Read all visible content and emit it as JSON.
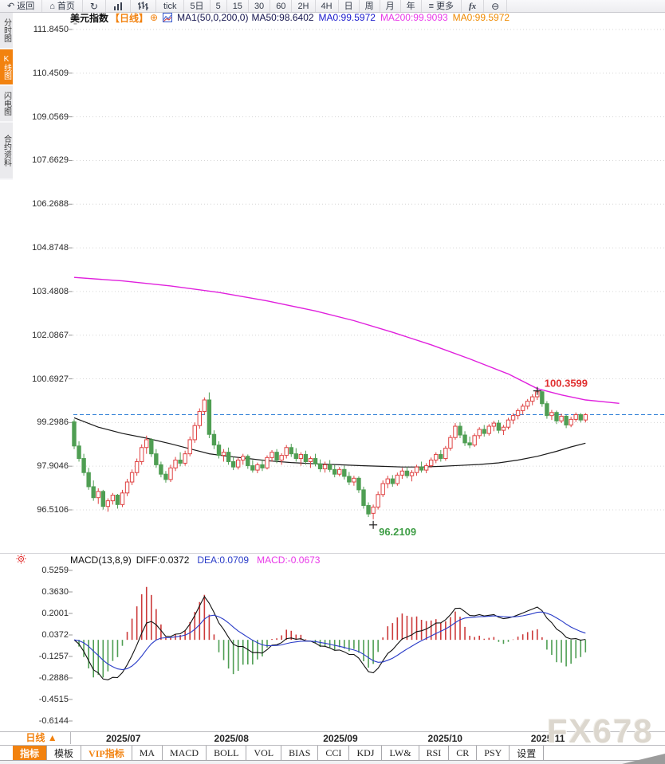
{
  "toolbar": {
    "items": [
      {
        "name": "back",
        "icon": "back",
        "label": "返回"
      },
      {
        "name": "home",
        "icon": "home",
        "label": "首页"
      },
      {
        "name": "refresh",
        "icon": "refresh",
        "label": ""
      },
      {
        "name": "chart-type-area",
        "icon": "area-chart",
        "label": ""
      },
      {
        "name": "chart-type-ohlc",
        "icon": "ohlc",
        "label": ""
      },
      {
        "name": "period-tick",
        "icon": "",
        "label": "tick"
      },
      {
        "name": "period-5day",
        "icon": "",
        "label": "5日"
      },
      {
        "name": "period-5",
        "icon": "",
        "label": "5"
      },
      {
        "name": "period-15",
        "icon": "",
        "label": "15"
      },
      {
        "name": "period-30",
        "icon": "",
        "label": "30"
      },
      {
        "name": "period-60",
        "icon": "",
        "label": "60"
      },
      {
        "name": "period-2h",
        "icon": "",
        "label": "2H"
      },
      {
        "name": "period-4h",
        "icon": "",
        "label": "4H"
      },
      {
        "name": "period-day",
        "icon": "",
        "label": "日"
      },
      {
        "name": "period-week",
        "icon": "",
        "label": "周"
      },
      {
        "name": "period-month",
        "icon": "",
        "label": "月"
      },
      {
        "name": "period-year",
        "icon": "",
        "label": "年"
      },
      {
        "name": "more",
        "icon": "more",
        "label": "更多"
      },
      {
        "name": "fx",
        "icon": "fx",
        "label": ""
      },
      {
        "name": "zoom-out",
        "icon": "zoom-out",
        "label": ""
      }
    ]
  },
  "sidebar": {
    "tabs": [
      {
        "name": "time-chart",
        "label": "分时图",
        "active": false
      },
      {
        "name": "kline-chart",
        "label": "K线图",
        "active": true
      },
      {
        "name": "lightning-chart",
        "label": "闪电图",
        "active": false
      },
      {
        "name": "contract-info",
        "label": "合约资料",
        "active": false
      }
    ]
  },
  "chart_header": {
    "symbol": "美元指数",
    "timeframe": "【日线】",
    "plus": "⊕",
    "ma_settings": "MA1(50,0,200,0)",
    "ma50": "MA50:98.6402",
    "ma0_blue": "MA0:99.5972",
    "ma200": "MA200:99.9093",
    "ma0_orange": "MA0:99.5972"
  },
  "macd_header": {
    "title": "MACD(13,8,9)",
    "diff": "DIFF:0.0372",
    "dea": "DEA:0.0709",
    "macd": "MACD:-0.0673"
  },
  "bottom": {
    "period_tab": "日线 ▲",
    "tabs": [
      {
        "name": "indicator",
        "label": "指标",
        "style": "active"
      },
      {
        "name": "template",
        "label": "模板",
        "style": ""
      },
      {
        "name": "vip-indicator",
        "label": "VIP指标",
        "style": "vip"
      },
      {
        "name": "ma",
        "label": "MA",
        "style": ""
      },
      {
        "name": "macd",
        "label": "MACD",
        "style": ""
      },
      {
        "name": "boll",
        "label": "BOLL",
        "style": ""
      },
      {
        "name": "vol",
        "label": "VOL",
        "style": ""
      },
      {
        "name": "bias",
        "label": "BIAS",
        "style": ""
      },
      {
        "name": "cci",
        "label": "CCI",
        "style": ""
      },
      {
        "name": "kdj",
        "label": "KDJ",
        "style": ""
      },
      {
        "name": "lw",
        "label": "LW&",
        "style": ""
      },
      {
        "name": "rsi",
        "label": "RSI",
        "style": ""
      },
      {
        "name": "cr",
        "label": "CR",
        "style": ""
      },
      {
        "name": "psy",
        "label": "PSY",
        "style": ""
      },
      {
        "name": "settings",
        "label": "设置",
        "style": ""
      }
    ]
  },
  "watermark": "FX678",
  "colors": {
    "accent_orange": "#f2820f",
    "up_red": "#df4242",
    "down_green": "#4f9e53",
    "ma50": "#1a1a1a",
    "ma200": "#e020dd",
    "diff_black": "#111111",
    "dea_blue": "#2a3cc8",
    "macd_magenta": "#e838e8",
    "price_line_blue": "#2f7fd6",
    "header_navy": "#14144e",
    "ma0_blue": "#1818cc",
    "ma0_orange": "#ef8a00",
    "grid": "#d6d6d6",
    "high_label_red": "#e03030",
    "low_label_green": "#3f9e46"
  },
  "chart_data": {
    "type": "candlestick",
    "title": "美元指数 日线 (US Dollar Index, daily)",
    "y_ticks": [
      111.845,
      110.4509,
      109.0569,
      107.6629,
      106.2688,
      104.8748,
      103.4808,
      102.0867,
      100.6927,
      99.2986,
      97.9046,
      96.5106
    ],
    "x_ticks": [
      "2025/07",
      "2025/08",
      "2025/09",
      "2025/10",
      "2025/11"
    ],
    "x_tick_index": [
      10.2,
      32.6,
      55.2,
      76.9,
      98.2
    ],
    "candles": [
      [
        99.32,
        99.4,
        98.45,
        98.55
      ],
      [
        98.55,
        98.7,
        98.05,
        98.15
      ],
      [
        98.15,
        98.3,
        97.6,
        97.7
      ],
      [
        97.7,
        97.85,
        97.15,
        97.25
      ],
      [
        97.25,
        97.45,
        96.8,
        96.9
      ],
      [
        96.9,
        97.2,
        96.7,
        97.1
      ],
      [
        97.1,
        97.15,
        96.52,
        96.62
      ],
      [
        96.62,
        96.88,
        96.45,
        96.8
      ],
      [
        96.8,
        97.05,
        96.68,
        96.98
      ],
      [
        96.98,
        97.02,
        96.55,
        96.68
      ],
      [
        96.68,
        97.15,
        96.6,
        97.05
      ],
      [
        97.05,
        97.5,
        96.95,
        97.4
      ],
      [
        97.4,
        97.8,
        97.3,
        97.7
      ],
      [
        97.7,
        98.15,
        97.6,
        98.05
      ],
      [
        98.05,
        98.6,
        97.95,
        98.5
      ],
      [
        98.5,
        98.88,
        98.3,
        98.75
      ],
      [
        98.75,
        98.8,
        98.2,
        98.3
      ],
      [
        98.3,
        98.45,
        97.85,
        97.95
      ],
      [
        97.95,
        98.05,
        97.55,
        97.65
      ],
      [
        97.65,
        97.75,
        97.38,
        97.48
      ],
      [
        97.48,
        97.95,
        97.4,
        97.85
      ],
      [
        97.85,
        98.2,
        97.75,
        98.1
      ],
      [
        98.1,
        98.35,
        97.9,
        98.0
      ],
      [
        98.0,
        98.4,
        97.92,
        98.3
      ],
      [
        98.3,
        98.85,
        98.22,
        98.75
      ],
      [
        98.75,
        99.3,
        98.65,
        99.2
      ],
      [
        99.2,
        99.75,
        99.1,
        99.65
      ],
      [
        99.65,
        100.1,
        99.55,
        100.02
      ],
      [
        100.02,
        100.26,
        98.8,
        98.92
      ],
      [
        98.92,
        99.05,
        98.45,
        98.58
      ],
      [
        98.58,
        98.7,
        98.15,
        98.25
      ],
      [
        98.25,
        98.45,
        98.05,
        98.35
      ],
      [
        98.35,
        98.5,
        97.95,
        98.05
      ],
      [
        98.05,
        98.2,
        97.78,
        97.88
      ],
      [
        97.88,
        98.18,
        97.8,
        98.1
      ],
      [
        98.1,
        98.3,
        97.95,
        98.22
      ],
      [
        98.22,
        98.28,
        97.82,
        97.92
      ],
      [
        97.92,
        98.1,
        97.7,
        97.78
      ],
      [
        97.78,
        98.02,
        97.68,
        97.95
      ],
      [
        97.95,
        98.12,
        97.75,
        97.85
      ],
      [
        97.85,
        98.25,
        97.8,
        98.18
      ],
      [
        98.18,
        98.42,
        98.05,
        98.35
      ],
      [
        98.35,
        98.45,
        98.0,
        98.1
      ],
      [
        98.1,
        98.32,
        97.95,
        98.25
      ],
      [
        98.25,
        98.58,
        98.15,
        98.5
      ],
      [
        98.5,
        98.62,
        98.2,
        98.3
      ],
      [
        98.3,
        98.48,
        98.05,
        98.15
      ],
      [
        98.15,
        98.35,
        97.92,
        98.28
      ],
      [
        98.28,
        98.4,
        97.95,
        98.05
      ],
      [
        98.05,
        98.22,
        97.85,
        98.15
      ],
      [
        98.15,
        98.3,
        97.9,
        97.98
      ],
      [
        97.98,
        98.12,
        97.72,
        97.82
      ],
      [
        97.82,
        98.05,
        97.7,
        97.95
      ],
      [
        97.95,
        98.1,
        97.72,
        97.8
      ],
      [
        97.8,
        97.95,
        97.55,
        97.65
      ],
      [
        97.65,
        97.88,
        97.58,
        97.8
      ],
      [
        97.8,
        97.92,
        97.48,
        97.58
      ],
      [
        97.58,
        97.72,
        97.3,
        97.4
      ],
      [
        97.4,
        97.6,
        97.28,
        97.52
      ],
      [
        97.52,
        97.58,
        97.05,
        97.15
      ],
      [
        97.15,
        97.25,
        96.55,
        96.65
      ],
      [
        96.65,
        96.75,
        96.28,
        96.38
      ],
      [
        96.4,
        96.68,
        96.21,
        96.6
      ],
      [
        96.6,
        97.1,
        96.52,
        97.0
      ],
      [
        97.0,
        97.45,
        96.92,
        97.35
      ],
      [
        97.35,
        97.6,
        97.2,
        97.5
      ],
      [
        97.5,
        97.62,
        97.25,
        97.35
      ],
      [
        97.35,
        97.7,
        97.28,
        97.62
      ],
      [
        97.62,
        97.85,
        97.5,
        97.75
      ],
      [
        97.75,
        97.88,
        97.52,
        97.6
      ],
      [
        97.6,
        97.78,
        97.42,
        97.7
      ],
      [
        97.7,
        97.95,
        97.6,
        97.88
      ],
      [
        97.88,
        98.05,
        97.7,
        97.78
      ],
      [
        97.78,
        98.0,
        97.68,
        97.92
      ],
      [
        97.92,
        98.18,
        97.85,
        98.1
      ],
      [
        98.1,
        98.35,
        98.0,
        98.28
      ],
      [
        98.28,
        98.42,
        98.05,
        98.15
      ],
      [
        98.15,
        98.55,
        98.08,
        98.48
      ],
      [
        98.48,
        98.9,
        98.4,
        98.82
      ],
      [
        98.82,
        99.28,
        98.75,
        99.18
      ],
      [
        99.18,
        99.3,
        98.8,
        98.9
      ],
      [
        98.9,
        99.02,
        98.55,
        98.65
      ],
      [
        98.65,
        98.85,
        98.48,
        98.58
      ],
      [
        98.58,
        98.95,
        98.52,
        98.88
      ],
      [
        98.88,
        99.15,
        98.78,
        99.08
      ],
      [
        99.08,
        99.22,
        98.85,
        98.95
      ],
      [
        98.95,
        99.25,
        98.88,
        99.18
      ],
      [
        99.18,
        99.35,
        99.02,
        99.28
      ],
      [
        99.28,
        99.38,
        98.95,
        99.05
      ],
      [
        99.05,
        99.22,
        98.9,
        99.15
      ],
      [
        99.15,
        99.45,
        99.08,
        99.38
      ],
      [
        99.38,
        99.6,
        99.25,
        99.52
      ],
      [
        99.52,
        99.75,
        99.4,
        99.68
      ],
      [
        99.68,
        99.9,
        99.55,
        99.82
      ],
      [
        99.82,
        100.05,
        99.72,
        99.98
      ],
      [
        99.98,
        100.2,
        99.85,
        100.12
      ],
      [
        100.12,
        100.36,
        100.02,
        100.28
      ],
      [
        100.28,
        100.32,
        99.8,
        99.9
      ],
      [
        99.9,
        99.98,
        99.42,
        99.52
      ],
      [
        99.52,
        99.7,
        99.38,
        99.62
      ],
      [
        99.62,
        99.68,
        99.25,
        99.35
      ],
      [
        99.35,
        99.58,
        99.28,
        99.5
      ],
      [
        99.5,
        99.55,
        99.12,
        99.22
      ],
      [
        99.22,
        99.48,
        99.15,
        99.4
      ],
      [
        99.4,
        99.62,
        99.32,
        99.55
      ],
      [
        99.55,
        99.6,
        99.3,
        99.38
      ],
      [
        99.38,
        99.6,
        99.3,
        99.55
      ]
    ],
    "ma50": [
      [
        0,
        99.45
      ],
      [
        5,
        99.15
      ],
      [
        10,
        98.95
      ],
      [
        15,
        98.8
      ],
      [
        20,
        98.62
      ],
      [
        25,
        98.42
      ],
      [
        28,
        98.3
      ],
      [
        32,
        98.22
      ],
      [
        36,
        98.15
      ],
      [
        40,
        98.08
      ],
      [
        45,
        98.02
      ],
      [
        50,
        97.98
      ],
      [
        55,
        97.95
      ],
      [
        60,
        97.92
      ],
      [
        64,
        97.9
      ],
      [
        68,
        97.88
      ],
      [
        72,
        97.88
      ],
      [
        76,
        97.9
      ],
      [
        80,
        97.93
      ],
      [
        84,
        97.96
      ],
      [
        88,
        98.01
      ],
      [
        92,
        98.1
      ],
      [
        96,
        98.22
      ],
      [
        100,
        98.38
      ],
      [
        103,
        98.52
      ],
      [
        106,
        98.64
      ]
    ],
    "ma200": [
      [
        0,
        103.93
      ],
      [
        10,
        103.82
      ],
      [
        20,
        103.66
      ],
      [
        30,
        103.45
      ],
      [
        40,
        103.18
      ],
      [
        50,
        102.86
      ],
      [
        58,
        102.55
      ],
      [
        66,
        102.18
      ],
      [
        74,
        101.78
      ],
      [
        82,
        101.33
      ],
      [
        90,
        100.85
      ],
      [
        96,
        100.38
      ],
      [
        101,
        100.18
      ],
      [
        106,
        100.02
      ],
      [
        113,
        99.91
      ]
    ],
    "last_price": 99.55,
    "high_annotation": {
      "index": 96,
      "price": 100.36,
      "label": "100.3599"
    },
    "low_annotation": {
      "index": 62,
      "price": 96.21,
      "label": "96.2109"
    },
    "macd": {
      "params": [
        13,
        8,
        9
      ],
      "diff_last": 0.0372,
      "dea_last": 0.0709,
      "macd_last": -0.0673,
      "y_ticks": [
        0.5259,
        0.363,
        0.2001,
        0.0372,
        -0.1257,
        -0.2886,
        -0.4515,
        -0.6144
      ]
    }
  }
}
